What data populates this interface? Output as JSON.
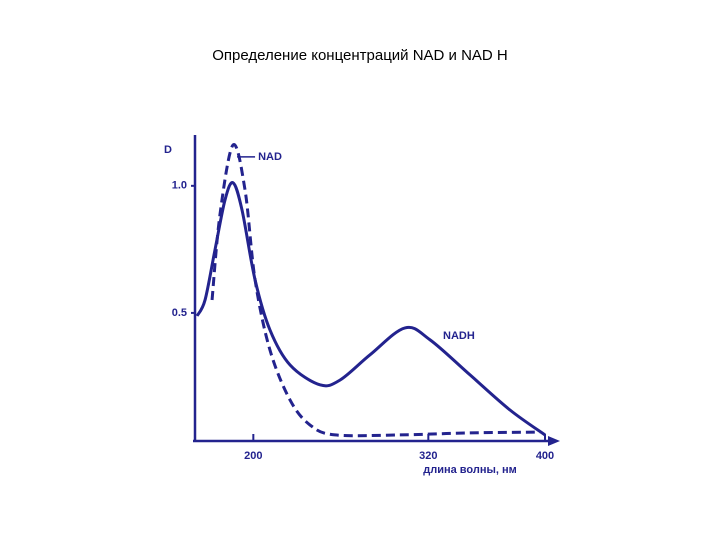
{
  "chart_data": {
    "type": "line",
    "title": "Определение концентраций NAD и NAD H",
    "y_label": "D",
    "x_label": "длина волны, нм",
    "xlim": [
      160,
      400
    ],
    "xticks": [
      200,
      320,
      400
    ],
    "ylim": [
      0,
      1.2
    ],
    "yticks": [
      0.5,
      {
        "value": 1,
        "label": "1.0"
      }
    ],
    "series": [
      {
        "name": "NAD",
        "color": "#23238e",
        "dash": true,
        "x": [
          171.7,
          177.1,
          186.1,
          194.3,
          201.2,
          211.4,
          225.2,
          238.9,
          256.0,
          300.6,
          348.6,
          396.6
        ],
        "values": [
          0.551,
          0.886,
          1.161,
          0.984,
          0.63,
          0.354,
          0.157,
          0.059,
          0.02,
          0.02,
          0.028,
          0.031
        ]
      },
      {
        "name": "NADH",
        "color": "#23238e",
        "dash": false,
        "x": [
          161.4,
          166.9,
          173.7,
          180.6,
          186.1,
          192.2,
          201.2,
          211.4,
          225.2,
          245.7,
          259.5,
          280.0,
          304.0,
          321.2,
          348.6,
          376.0,
          400
        ],
        "values": [
          0.488,
          0.551,
          0.748,
          0.945,
          1.012,
          0.906,
          0.63,
          0.433,
          0.295,
          0.217,
          0.236,
          0.335,
          0.441,
          0.394,
          0.256,
          0.118,
          0.02
        ]
      }
    ]
  }
}
